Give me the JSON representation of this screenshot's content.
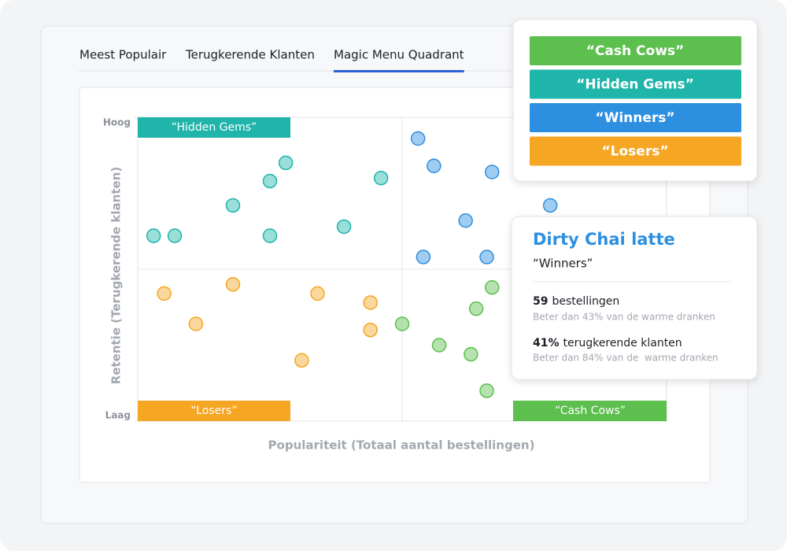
{
  "tabs": [
    "Meest Populair",
    "Terugkerende Klanten",
    "Magic Menu Quadrant"
  ],
  "active_tab": 2,
  "chart_data": {
    "type": "scatter",
    "xlabel": "Populariteit (Totaal aantal bestellingen)",
    "ylabel": "Retentie (Terugkerende klanten)",
    "xlim": [
      0,
      100
    ],
    "ylim": [
      0,
      100
    ],
    "yticks": [
      {
        "value": 0,
        "label": "Laag"
      },
      {
        "value": 100,
        "label": "Hoog"
      }
    ],
    "series": [
      {
        "name": "“Cash Cows”",
        "color": "#5cbf4e",
        "x": [
          50,
          57,
          63,
          64,
          67,
          66
        ],
        "values": [
          32,
          25,
          22,
          37,
          44,
          10
        ]
      },
      {
        "name": "“Hidden Gems”",
        "color": "#20b5aa",
        "x": [
          3,
          7,
          18,
          25,
          25,
          28,
          39,
          46
        ],
        "values": [
          61,
          61,
          71,
          61,
          79,
          85,
          64,
          80
        ]
      },
      {
        "name": "“Winners”",
        "color": "#2d8fe0",
        "x": [
          53,
          56,
          67,
          62,
          54,
          66,
          78
        ],
        "values": [
          93,
          84,
          82,
          66,
          54,
          54,
          71
        ]
      },
      {
        "name": "“Losers”",
        "color": "#f5a623",
        "x": [
          5,
          18,
          11,
          34,
          44,
          44,
          31
        ],
        "values": [
          42,
          45,
          32,
          42,
          39,
          30,
          20
        ]
      }
    ]
  },
  "detail": {
    "title": "Dirty Chai latte",
    "category": "“Winners”",
    "stats": [
      {
        "value": "59",
        "label": "bestellingen",
        "note": "Beter dan 43% van de warme dranken"
      },
      {
        "value": "41%",
        "label": "terugkerende klanten",
        "note": "Beter dan 84% van de  warme dranken"
      }
    ]
  }
}
